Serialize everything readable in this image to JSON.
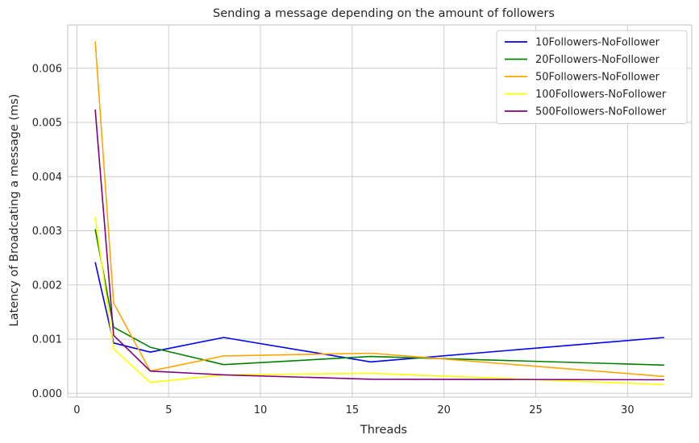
{
  "chart_data": {
    "type": "line",
    "title": "Sending a message depending on the amount of followers",
    "xlabel": "Threads",
    "ylabel": "Latency of Broadcating a message (ms)",
    "xlim": [
      -0.5,
      33.5
    ],
    "ylim": [
      -7e-05,
      0.0068
    ],
    "x_ticks": [
      0,
      5,
      10,
      15,
      20,
      25,
      30
    ],
    "y_ticks": [
      0.0,
      0.001,
      0.002,
      0.003,
      0.004,
      0.005,
      0.006
    ],
    "y_tick_labels": [
      "0.000",
      "0.001",
      "0.002",
      "0.003",
      "0.004",
      "0.005",
      "0.006"
    ],
    "grid": true,
    "legend_position": "top-right",
    "x": [
      1,
      2,
      4,
      8,
      16,
      32
    ],
    "series": [
      {
        "name": "10Followers-NoFollower",
        "color": "#0000ff",
        "values": [
          0.00242,
          0.00093,
          0.00076,
          0.00103,
          0.00058,
          0.00103
        ]
      },
      {
        "name": "20Followers-NoFollower",
        "color": "#008000",
        "values": [
          0.00303,
          0.00122,
          0.00085,
          0.00053,
          0.00068,
          0.00052
        ]
      },
      {
        "name": "50Followers-NoFollower",
        "color": "#ffa500",
        "values": [
          0.0065,
          0.00167,
          0.00041,
          0.00069,
          0.00074,
          0.00031
        ]
      },
      {
        "name": "100Followers-NoFollower",
        "color": "#ffff00",
        "values": [
          0.00325,
          0.00082,
          0.0002,
          0.00034,
          0.00037,
          0.00016
        ]
      },
      {
        "name": "500Followers-NoFollower",
        "color": "#800080",
        "values": [
          0.00524,
          0.00107,
          0.00041,
          0.00034,
          0.00026,
          0.00025
        ]
      }
    ]
  }
}
